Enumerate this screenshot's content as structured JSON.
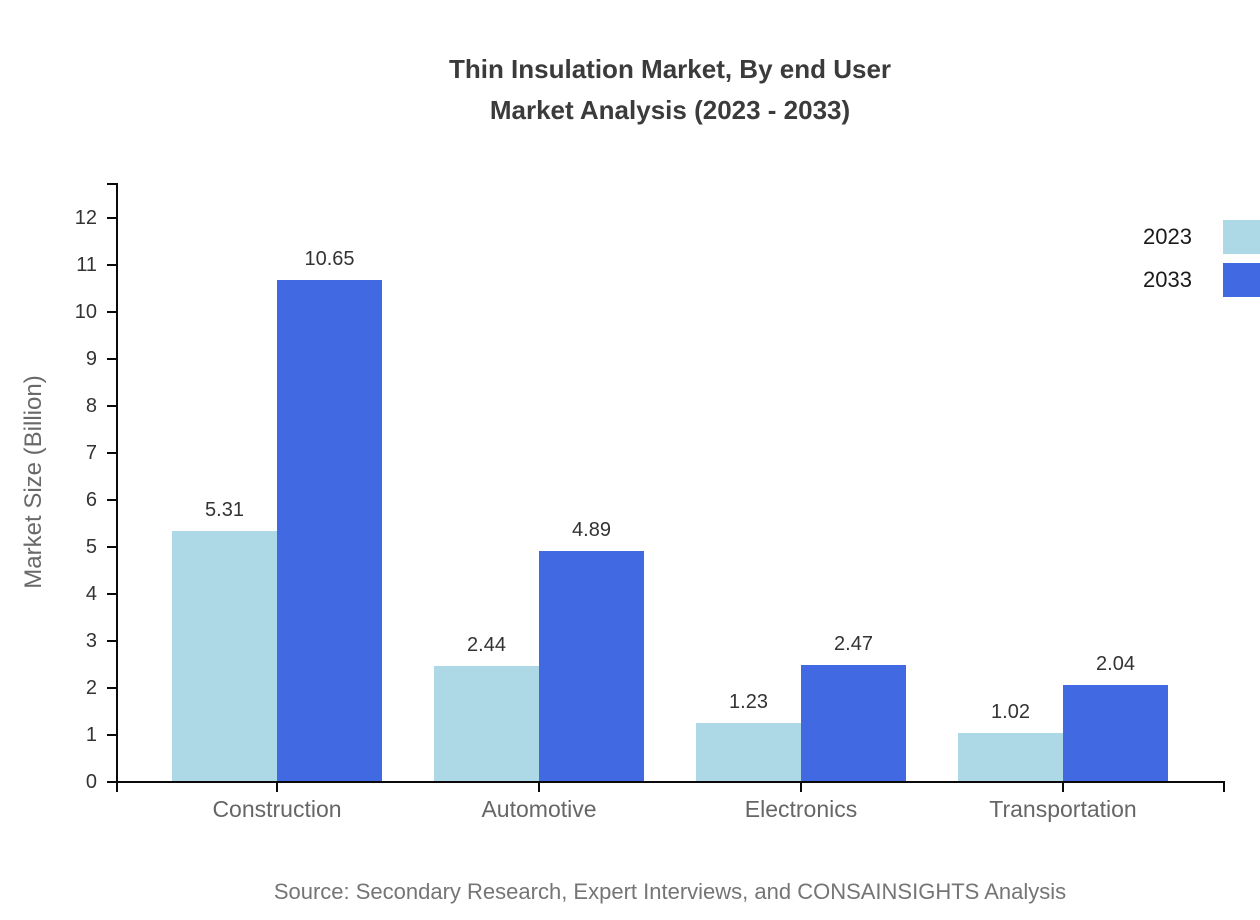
{
  "title": {
    "line1": "Thin Insulation Market, By end User",
    "line2": "Market Analysis (2023 - 2033)"
  },
  "source": "Source: Secondary Research, Expert Interviews, and CONSAINSIGHTS Analysis",
  "legend": {
    "items": [
      {
        "label": "2023",
        "color": "#add8e6"
      },
      {
        "label": "2033",
        "color": "#4169e1"
      }
    ]
  },
  "colors": {
    "series_2023": "#add8e6",
    "series_2033": "#4169e1",
    "axis": "#0a0a0a",
    "title_text": "#3b3b3b",
    "category_text": "#666666",
    "value_text": "#333333",
    "source_text": "#757575"
  },
  "chart_data": {
    "type": "bar",
    "title": "Thin Insulation Market, By end User Market Analysis (2023 - 2033)",
    "categories": [
      "Construction",
      "Automotive",
      "Electronics",
      "Transportation"
    ],
    "series": [
      {
        "name": "2023",
        "color": "#add8e6",
        "values": [
          5.31,
          2.44,
          1.23,
          1.02
        ]
      },
      {
        "name": "2033",
        "color": "#4169e1",
        "values": [
          10.65,
          4.89,
          2.47,
          2.04
        ]
      }
    ],
    "xlabel": "",
    "ylabel": "Market Size (Billion)",
    "ylim": [
      0,
      12
    ],
    "yticks": [
      0,
      1,
      2,
      3,
      4,
      5,
      6,
      7,
      8,
      9,
      10,
      11,
      12
    ],
    "grid": false,
    "legend_position": "top-right",
    "value_labels": true
  }
}
